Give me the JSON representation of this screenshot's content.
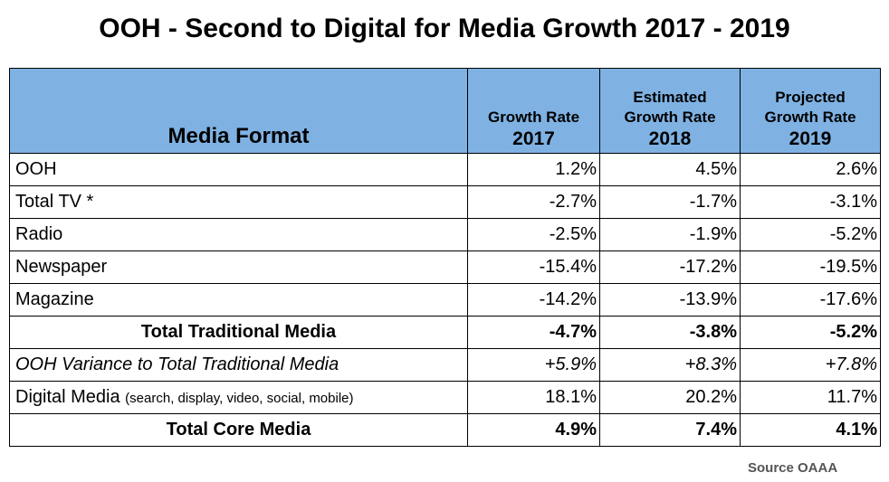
{
  "chart_data": {
    "type": "table",
    "title": "OOH - Second to Digital for Media Growth 2017 - 2019",
    "columns": [
      {
        "name": "Media Format"
      },
      {
        "name": "Growth Rate",
        "year": "2017"
      },
      {
        "name": "Estimated Growth Rate",
        "year": "2018"
      },
      {
        "name": "Projected Growth Rate",
        "year": "2019"
      }
    ],
    "rows": [
      {
        "label": "OOH",
        "note": "",
        "values": [
          "1.2%",
          "4.5%",
          "2.6%"
        ],
        "style": "normal"
      },
      {
        "label": "Total TV *",
        "note": "",
        "values": [
          "-2.7%",
          "-1.7%",
          "-3.1%"
        ],
        "style": "normal"
      },
      {
        "label": "Radio",
        "note": "",
        "values": [
          "-2.5%",
          "-1.9%",
          "-5.2%"
        ],
        "style": "normal"
      },
      {
        "label": "Newspaper",
        "note": "",
        "values": [
          "-15.4%",
          "-17.2%",
          "-19.5%"
        ],
        "style": "normal"
      },
      {
        "label": "Magazine",
        "note": "",
        "values": [
          "-14.2%",
          "-13.9%",
          "-17.6%"
        ],
        "style": "normal"
      },
      {
        "label": "Total Traditional Media",
        "note": "",
        "values": [
          "-4.7%",
          "-3.8%",
          "-5.2%"
        ],
        "style": "bold"
      },
      {
        "label": "OOH Variance to Total Traditional Media",
        "note": "",
        "values": [
          "+5.9%",
          "+8.3%",
          "+7.8%"
        ],
        "style": "italic"
      },
      {
        "label": "Digital Media",
        "note": "(search, display, video, social, mobile)",
        "values": [
          "18.1%",
          "20.2%",
          "11.7%"
        ],
        "style": "normal"
      },
      {
        "label": "Total Core Media",
        "note": "",
        "values": [
          "4.9%",
          "7.4%",
          "4.1%"
        ],
        "style": "bold"
      }
    ],
    "source": "Source OAAA",
    "header_color": "#7fb2e3"
  }
}
